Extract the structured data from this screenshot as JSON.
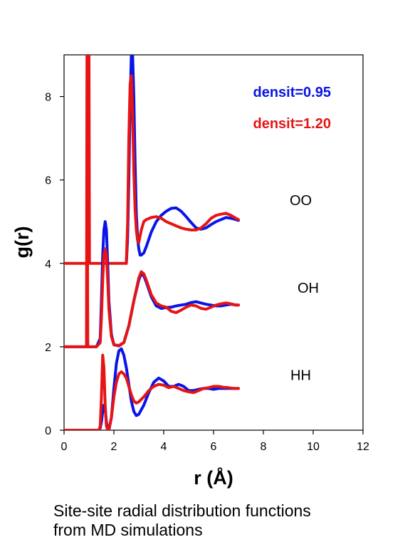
{
  "chart_data": {
    "type": "line",
    "xlabel": "r (Å)",
    "ylabel": "g(r)",
    "xlim": [
      0,
      12
    ],
    "ylim": [
      0,
      9
    ],
    "xticks": [
      0,
      2,
      4,
      6,
      8,
      10,
      12
    ],
    "yticks": [
      0,
      2,
      4,
      6,
      8
    ],
    "grid": false,
    "legend": {
      "placement": "top-right",
      "entries": [
        {
          "label": "densit=0.95",
          "color": "#0a14e6"
        },
        {
          "label": "densit=1.20",
          "color": "#e61414"
        }
      ]
    },
    "annotations": [
      {
        "text": "OO",
        "x": 9.5,
        "y": 5.4
      },
      {
        "text": "OH",
        "x": 9.8,
        "y": 3.3
      },
      {
        "text": "HH",
        "x": 9.5,
        "y": 1.2
      }
    ],
    "series": [
      {
        "name": "densit=0.95",
        "group": "OO",
        "color": "#0a14e6",
        "x": [
          2.5,
          2.55,
          2.6,
          2.65,
          2.7,
          2.75,
          2.8,
          2.85,
          2.9,
          2.95,
          3.0,
          3.05,
          3.1,
          3.2,
          3.3,
          3.5,
          3.7,
          3.9,
          4.1,
          4.3,
          4.5,
          4.7,
          4.9,
          5.1,
          5.3,
          5.5,
          5.7,
          5.9,
          6.1,
          6.3,
          6.5,
          6.7,
          6.9,
          7.0
        ],
        "y": [
          4.0,
          4.6,
          6.0,
          7.8,
          9.0,
          9.0,
          8.0,
          6.4,
          5.2,
          4.6,
          4.35,
          4.2,
          4.2,
          4.25,
          4.4,
          4.75,
          5.0,
          5.15,
          5.25,
          5.32,
          5.33,
          5.25,
          5.12,
          4.98,
          4.85,
          4.82,
          4.85,
          4.93,
          5.0,
          5.05,
          5.1,
          5.08,
          5.05,
          5.03
        ]
      },
      {
        "name": "densit=1.20",
        "group": "OO",
        "color": "#e61414",
        "x": [
          0.0,
          0.9,
          0.95,
          0.97,
          1.0,
          1.02,
          1.05,
          1.1,
          2.5,
          2.55,
          2.6,
          2.65,
          2.7,
          2.75,
          2.8,
          2.85,
          2.9,
          2.95,
          3.0,
          3.1,
          3.2,
          3.3,
          3.5,
          3.7,
          3.9,
          4.1,
          4.3,
          4.5,
          4.7,
          4.9,
          5.1,
          5.3,
          5.5,
          5.7,
          5.9,
          6.1,
          6.3,
          6.5,
          6.7,
          6.9,
          7.0
        ],
        "y": [
          4.0,
          4.0,
          4.0,
          9.0,
          9.0,
          4.0,
          4.0,
          4.0,
          4.0,
          5.0,
          7.0,
          8.3,
          8.5,
          7.6,
          6.2,
          5.3,
          4.8,
          4.55,
          4.5,
          4.8,
          5.0,
          5.05,
          5.1,
          5.12,
          5.08,
          5.0,
          4.95,
          4.9,
          4.85,
          4.82,
          4.8,
          4.8,
          4.85,
          4.95,
          5.08,
          5.15,
          5.18,
          5.2,
          5.15,
          5.08,
          5.05
        ]
      },
      {
        "name": "densit=0.95",
        "group": "OH",
        "color": "#0a14e6",
        "x": [
          0.0,
          0.9,
          0.92,
          0.95,
          1.0,
          1.3,
          1.45,
          1.5,
          1.55,
          1.6,
          1.65,
          1.7,
          1.75,
          1.8,
          1.9,
          2.0,
          2.2,
          2.4,
          2.6,
          2.8,
          3.0,
          3.1,
          3.2,
          3.3,
          3.5,
          3.7,
          3.9,
          4.1,
          4.3,
          4.5,
          4.7,
          4.9,
          5.1,
          5.3,
          5.5,
          5.7,
          5.9,
          6.1,
          6.3,
          6.5,
          6.7,
          6.9,
          7.0
        ],
        "y": [
          2.0,
          2.0,
          3.1,
          2.0,
          2.0,
          2.0,
          2.2,
          3.1,
          4.2,
          4.8,
          5.0,
          4.8,
          4.0,
          3.1,
          2.3,
          2.05,
          2.02,
          2.1,
          2.5,
          3.1,
          3.6,
          3.75,
          3.7,
          3.55,
          3.2,
          2.98,
          2.92,
          2.94,
          2.95,
          2.98,
          3.0,
          3.02,
          3.06,
          3.08,
          3.05,
          3.02,
          3.0,
          2.98,
          2.98,
          3.0,
          3.02,
          3.0,
          3.0
        ]
      },
      {
        "name": "densit=1.20",
        "group": "OH",
        "color": "#e61414",
        "x": [
          0.0,
          0.9,
          0.92,
          0.95,
          1.0,
          1.3,
          1.45,
          1.5,
          1.55,
          1.6,
          1.65,
          1.7,
          1.75,
          1.8,
          1.9,
          2.0,
          2.2,
          2.4,
          2.6,
          2.8,
          3.0,
          3.1,
          3.2,
          3.3,
          3.5,
          3.7,
          3.9,
          4.1,
          4.3,
          4.5,
          4.7,
          4.9,
          5.1,
          5.3,
          5.5,
          5.7,
          5.9,
          6.1,
          6.3,
          6.5,
          6.7,
          6.9,
          7.0
        ],
        "y": [
          2.0,
          2.0,
          9.0,
          2.0,
          2.0,
          2.0,
          2.1,
          2.7,
          3.6,
          4.2,
          4.35,
          4.2,
          3.6,
          2.9,
          2.25,
          2.05,
          2.03,
          2.1,
          2.5,
          3.1,
          3.65,
          3.8,
          3.75,
          3.6,
          3.25,
          3.05,
          2.98,
          2.95,
          2.85,
          2.82,
          2.88,
          2.95,
          3.0,
          2.98,
          2.92,
          2.9,
          2.95,
          3.0,
          3.03,
          3.05,
          3.03,
          3.0,
          3.0
        ]
      },
      {
        "name": "densit=0.95",
        "group": "HH",
        "color": "#0a14e6",
        "x": [
          0.0,
          1.4,
          1.45,
          1.5,
          1.55,
          1.6,
          1.65,
          1.7,
          1.75,
          1.8,
          1.9,
          2.0,
          2.1,
          2.2,
          2.3,
          2.4,
          2.5,
          2.6,
          2.7,
          2.8,
          2.9,
          3.0,
          3.2,
          3.4,
          3.6,
          3.8,
          4.0,
          4.2,
          4.4,
          4.6,
          4.8,
          5.0,
          5.2,
          5.4,
          5.6,
          5.8,
          6.0,
          6.2,
          6.4,
          6.6,
          6.8,
          7.0
        ],
        "y": [
          0.0,
          0.0,
          0.05,
          0.2,
          0.45,
          0.6,
          0.5,
          0.2,
          0.02,
          0.0,
          0.3,
          1.0,
          1.6,
          1.9,
          1.95,
          1.8,
          1.5,
          1.1,
          0.7,
          0.45,
          0.35,
          0.38,
          0.6,
          0.9,
          1.15,
          1.25,
          1.18,
          1.05,
          1.05,
          1.1,
          1.05,
          0.95,
          0.95,
          0.98,
          1.0,
          1.0,
          0.98,
          1.0,
          1.0,
          1.0,
          1.0,
          1.0
        ]
      },
      {
        "name": "densit=1.20",
        "group": "HH",
        "color": "#e61414",
        "x": [
          0.0,
          1.4,
          1.45,
          1.5,
          1.55,
          1.6,
          1.65,
          1.7,
          1.75,
          1.8,
          1.9,
          2.0,
          2.1,
          2.2,
          2.3,
          2.4,
          2.5,
          2.6,
          2.7,
          2.8,
          2.9,
          3.0,
          3.2,
          3.4,
          3.6,
          3.8,
          4.0,
          4.2,
          4.4,
          4.6,
          4.8,
          5.0,
          5.2,
          5.4,
          5.6,
          5.8,
          6.0,
          6.2,
          6.4,
          6.6,
          6.8,
          7.0
        ],
        "y": [
          0.0,
          0.0,
          0.1,
          0.8,
          1.8,
          1.5,
          0.6,
          0.1,
          0.0,
          0.02,
          0.3,
          0.8,
          1.15,
          1.35,
          1.4,
          1.35,
          1.25,
          1.05,
          0.85,
          0.7,
          0.65,
          0.68,
          0.8,
          0.95,
          1.05,
          1.1,
          1.08,
          1.02,
          1.05,
          1.0,
          0.95,
          0.92,
          0.9,
          0.95,
          1.0,
          1.02,
          1.05,
          1.05,
          1.03,
          1.02,
          1.0,
          1.0
        ]
      }
    ]
  },
  "caption": {
    "line1": "Site-site radial distribution functions",
    "line2": "from MD simulations"
  }
}
